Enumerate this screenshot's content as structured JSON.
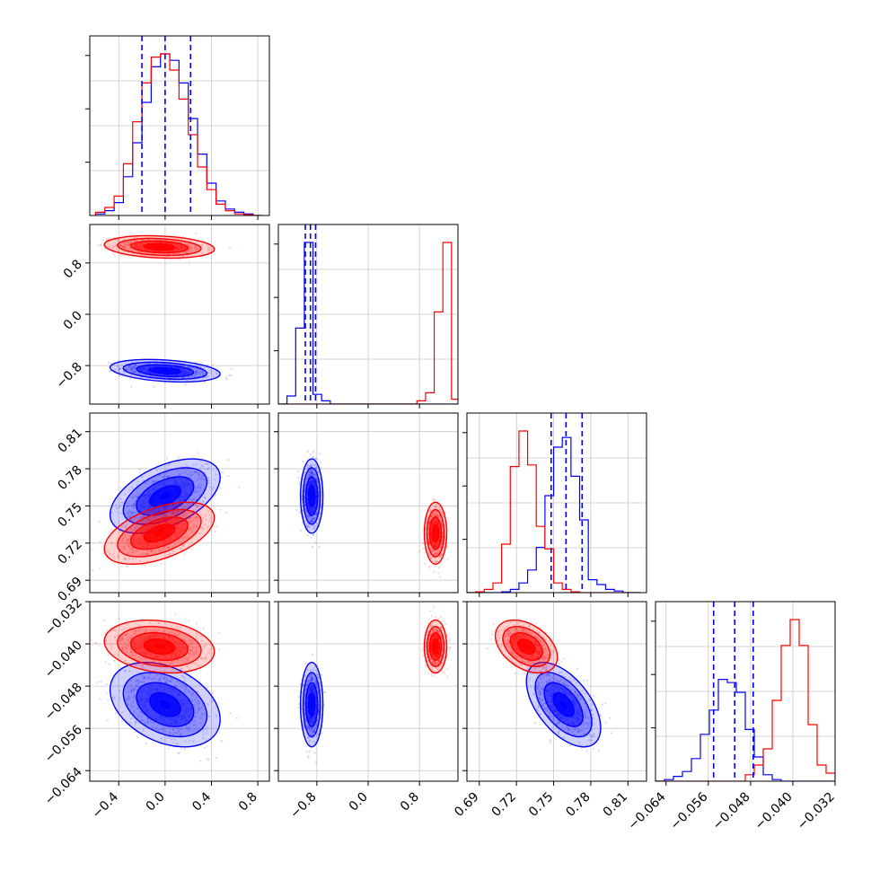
{
  "chart_data": {
    "type": "corner",
    "title": "",
    "params": [
      {
        "id": "p0",
        "range": [
          -0.65,
          0.9
        ],
        "ticks": [
          -0.4,
          0.0,
          0.4,
          0.8
        ],
        "tick_labels": [
          "−0.4",
          "0.0",
          "0.4",
          "0.8"
        ]
      },
      {
        "id": "p1",
        "range": [
          -1.4,
          1.4
        ],
        "ticks": [
          -0.8,
          0.0,
          0.8
        ],
        "tick_labels": [
          "−0.8",
          "0.0",
          "0.8"
        ]
      },
      {
        "id": "p2",
        "range": [
          0.68,
          0.825
        ],
        "ticks": [
          0.69,
          0.72,
          0.75,
          0.78,
          0.81
        ],
        "tick_labels": [
          "0.69",
          "0.72",
          "0.75",
          "0.78",
          "0.81"
        ]
      },
      {
        "id": "p3",
        "range": [
          -0.066,
          -0.032
        ],
        "ticks": [
          -0.064,
          -0.056,
          -0.048,
          -0.04,
          -0.032
        ],
        "tick_labels": [
          "−0.064",
          "−0.056",
          "−0.048",
          "−0.040",
          "−0.032"
        ]
      }
    ],
    "series": [
      {
        "name": "",
        "color": "#0000ff",
        "means": [
          0.0,
          -0.88,
          0.758,
          -0.0515
        ],
        "sds": [
          0.19,
          0.07,
          0.012,
          0.0032
        ],
        "quantiles": [
          [
            -0.2,
            0.0,
            0.22
          ],
          [
            -0.98,
            -0.9,
            -0.82
          ],
          [
            0.748,
            0.76,
            0.773
          ],
          [
            -0.055,
            -0.051,
            -0.0475
          ]
        ],
        "corr": [
          [
            0,
            1,
            -0.3
          ],
          [
            0,
            2,
            0.5
          ],
          [
            0,
            3,
            -0.35
          ],
          [
            1,
            3,
            0.0
          ],
          [
            2,
            3,
            -0.55
          ],
          [
            1,
            2,
            0.0
          ]
        ]
      },
      {
        "name": "",
        "color": "#ff0000",
        "means": [
          -0.05,
          1.05,
          0.728,
          -0.0405
        ],
        "sds": [
          0.19,
          0.07,
          0.01,
          0.002
        ],
        "quantiles": [],
        "corr": [
          [
            0,
            1,
            -0.2
          ],
          [
            0,
            2,
            0.5
          ],
          [
            0,
            3,
            -0.2
          ],
          [
            1,
            3,
            0.0
          ],
          [
            2,
            3,
            -0.4
          ],
          [
            1,
            2,
            0.0
          ]
        ]
      }
    ],
    "hist_1d": [
      {
        "param": 0,
        "bin_edges": [
          -0.6,
          -0.52,
          -0.44,
          -0.36,
          -0.28,
          -0.2,
          -0.12,
          -0.04,
          0.04,
          0.12,
          0.2,
          0.28,
          0.36,
          0.44,
          0.52,
          0.6,
          0.68,
          0.76,
          0.84
        ],
        "blue": [
          0.01,
          0.03,
          0.08,
          0.24,
          0.45,
          0.7,
          0.92,
          1.0,
          0.96,
          0.82,
          0.6,
          0.38,
          0.2,
          0.09,
          0.04,
          0.02,
          0.01,
          0.0
        ],
        "red": [
          0.02,
          0.05,
          0.12,
          0.32,
          0.58,
          0.82,
          0.98,
          1.0,
          0.9,
          0.72,
          0.5,
          0.3,
          0.16,
          0.07,
          0.03,
          0.01,
          0.005,
          0.0
        ]
      },
      {
        "param": 1,
        "bin_edges": [
          -1.4,
          -1.265,
          -1.13,
          -0.995,
          -0.86,
          -0.725,
          -0.59,
          -0.455,
          -0.32,
          -0.185,
          -0.05,
          0.085,
          0.22,
          0.355,
          0.49,
          0.625,
          0.76,
          0.895,
          1.03,
          1.165,
          1.3,
          1.435
        ],
        "blue": [
          0.0,
          0.05,
          0.47,
          1.0,
          0.06,
          0.02,
          0.0,
          0.0,
          0.0,
          0.0,
          0.0,
          0.0,
          0.0,
          0.0,
          0.0,
          0.0,
          0.0,
          0.0,
          0.0,
          0.0,
          0.0
        ],
        "red": [
          0.0,
          0.0,
          0.0,
          0.0,
          0.0,
          0.0,
          0.0,
          0.0,
          0.0,
          0.0,
          0.0,
          0.0,
          0.0,
          0.0,
          0.0,
          0.0,
          0.02,
          0.07,
          0.57,
          1.0,
          0.03
        ]
      },
      {
        "param": 2,
        "bin_edges": [
          0.68,
          0.687,
          0.694,
          0.701,
          0.708,
          0.715,
          0.722,
          0.729,
          0.736,
          0.743,
          0.75,
          0.757,
          0.764,
          0.771,
          0.778,
          0.785,
          0.792,
          0.799,
          0.806,
          0.813,
          0.82
        ],
        "blue": [
          0.0,
          0.0,
          0.0,
          0.0,
          0.005,
          0.02,
          0.06,
          0.14,
          0.28,
          0.6,
          0.9,
          0.96,
          0.72,
          0.45,
          0.08,
          0.05,
          0.02,
          0.01,
          0.0,
          0.0
        ],
        "red": [
          0.0,
          0.005,
          0.02,
          0.06,
          0.3,
          0.78,
          1.0,
          0.79,
          0.41,
          0.27,
          0.06,
          0.02,
          0.005,
          0.0,
          0.0,
          0.0,
          0.0,
          0.0,
          0.0,
          0.0
        ]
      },
      {
        "param": 3,
        "bin_edges": [
          -0.066,
          -0.0643,
          -0.0626,
          -0.0609,
          -0.0592,
          -0.0575,
          -0.0558,
          -0.0541,
          -0.0524,
          -0.0507,
          -0.049,
          -0.0473,
          -0.0456,
          -0.0439,
          -0.0422,
          -0.0405,
          -0.0388,
          -0.0371,
          -0.0354,
          -0.0337,
          -0.032
        ],
        "blue": [
          0.0,
          0.01,
          0.03,
          0.06,
          0.14,
          0.29,
          0.44,
          0.63,
          0.61,
          0.55,
          0.32,
          0.15,
          0.04,
          0.01,
          0.0,
          0.0,
          0.0,
          0.0,
          0.0,
          0.0
        ],
        "red": [
          0.0,
          0.0,
          0.0,
          0.0,
          0.0,
          0.0,
          0.0,
          0.0,
          0.0,
          0.0,
          0.04,
          0.1,
          0.2,
          0.5,
          0.84,
          1.0,
          0.84,
          0.35,
          0.1,
          0.05
        ]
      }
    ],
    "grid": true,
    "legend": "none"
  }
}
